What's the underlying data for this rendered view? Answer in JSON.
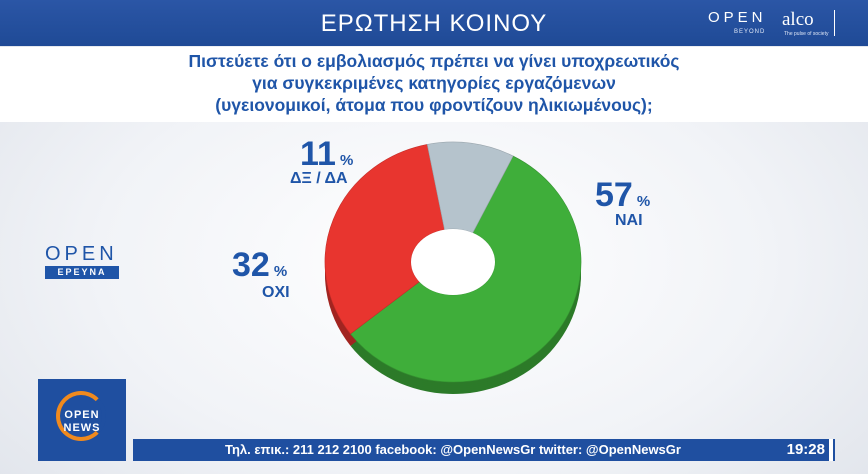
{
  "header": {
    "title": "ΕΡΩΤΗΣΗ ΚΟΙΝΟΥ"
  },
  "branding": {
    "open": "OPEN",
    "beyond": "BEYOND",
    "alco": "alco",
    "alco_tagline": "The pulse of society",
    "open_ereuna_top": "OPEN",
    "open_ereuna_bottom": "ΕΡΕΥΝΑ",
    "logo_open": "OPEN",
    "logo_news": "NEWS"
  },
  "question": {
    "line1": "Πιστεύετε ότι ο εμβολιασμός πρέπει να γίνει υποχρεωτικός",
    "line2": "για συγκεκριμένες κατηγορίες εργαζόμενων",
    "line3": "(υγειονομικοί, άτομα που φροντίζουν ηλικιωμένους);"
  },
  "chart_data": {
    "type": "pie",
    "variant": "donut",
    "slices": [
      {
        "label": "ΝΑΙ",
        "value": 57,
        "color": "#3fae3a"
      },
      {
        "label": "ΟΧΙ",
        "value": 32,
        "color": "#e8352f"
      },
      {
        "label": "ΔΞ / ΔΑ",
        "value": 11,
        "color": "#b5c3cc"
      }
    ],
    "percent_symbol": "%"
  },
  "ticker": {
    "text": "Τηλ. επικ.: 211 212 2100 facebook: @OpenNewsGr twitter: @OpenNewsGr",
    "time": "19:28"
  },
  "colors": {
    "brand_blue": "#1f55a8",
    "accent_orange": "#f08a1e"
  }
}
